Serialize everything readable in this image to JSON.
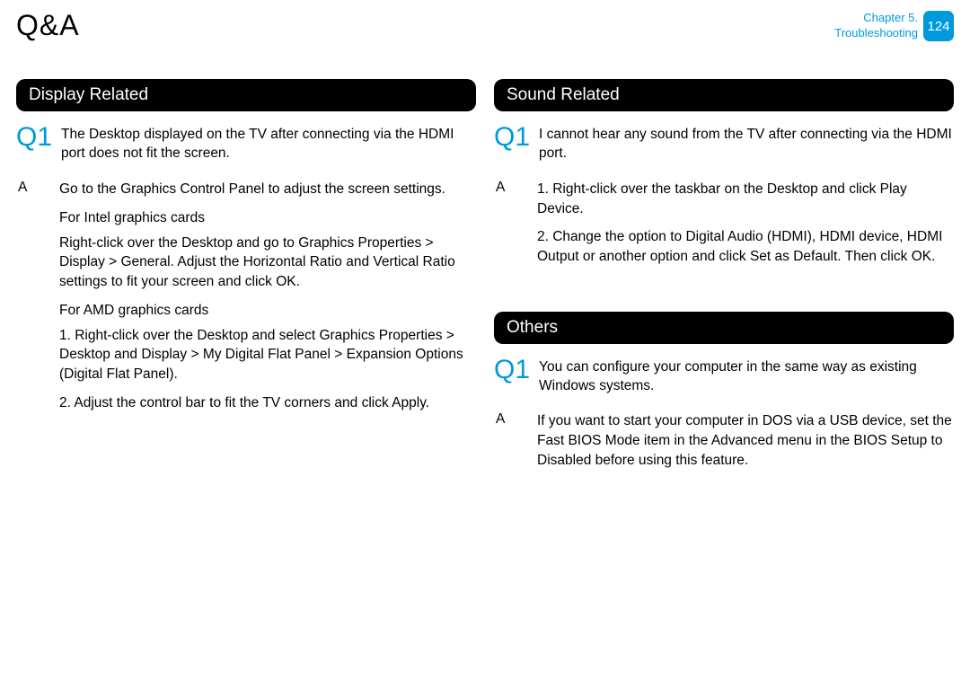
{
  "page": {
    "title": "Q&A",
    "chapter_line1": "Chapter 5.",
    "chapter_line2": "Troubleshooting",
    "page_number": "124"
  },
  "colors": {
    "accent": "#0099dd",
    "section_bg": "#000000",
    "section_fg": "#ffffff",
    "text": "#000000",
    "page_bg": "#ffffff"
  },
  "left": {
    "section_title": "Display Related",
    "q_label": "Q1",
    "q_text": "The Desktop displayed on the TV after connecting via the HDMI port does not ﬁt the screen.",
    "a_label": "A",
    "a_text": "Go to the Graphics Control Panel to adjust the screen settings.",
    "sub1_heading": "For Intel graphics cards",
    "sub1_body": "Right-click over the Desktop and go to Graphics Properties > Display > General. Adjust the Horizontal Ratio and Vertical Ratio settings to ﬁt your screen and click OK.",
    "sub2_heading": "For AMD graphics cards",
    "sub2_item1": "1. Right-click over the Desktop and select Graphics Properties > Desktop and Display > My Digital Flat Panel > Expansion Options (Digital Flat Panel).",
    "sub2_item2": "2. Adjust the control bar to ﬁt the TV corners and click Apply."
  },
  "right_a": {
    "section_title": "Sound Related",
    "q_label": "Q1",
    "q_text": "I cannot hear any sound from the TV after connecting via the HDMI port.",
    "a_label": "A",
    "a_item1": "1. Right-click over the taskbar on the Desktop and click Play Device.",
    "a_item2": "2. Change the option to Digital Audio (HDMI), HDMI device, HDMI Output or another option and click Set as Default. Then click OK."
  },
  "right_b": {
    "section_title": "Others",
    "q_label": "Q1",
    "q_text": "You can conﬁgure your computer in the same way as existing Windows systems.",
    "a_label": "A",
    "a_text": "If you want to start your computer in DOS via a USB device, set the Fast BIOS Mode item in the Advanced menu in the BIOS Setup to Disabled before using this feature."
  }
}
